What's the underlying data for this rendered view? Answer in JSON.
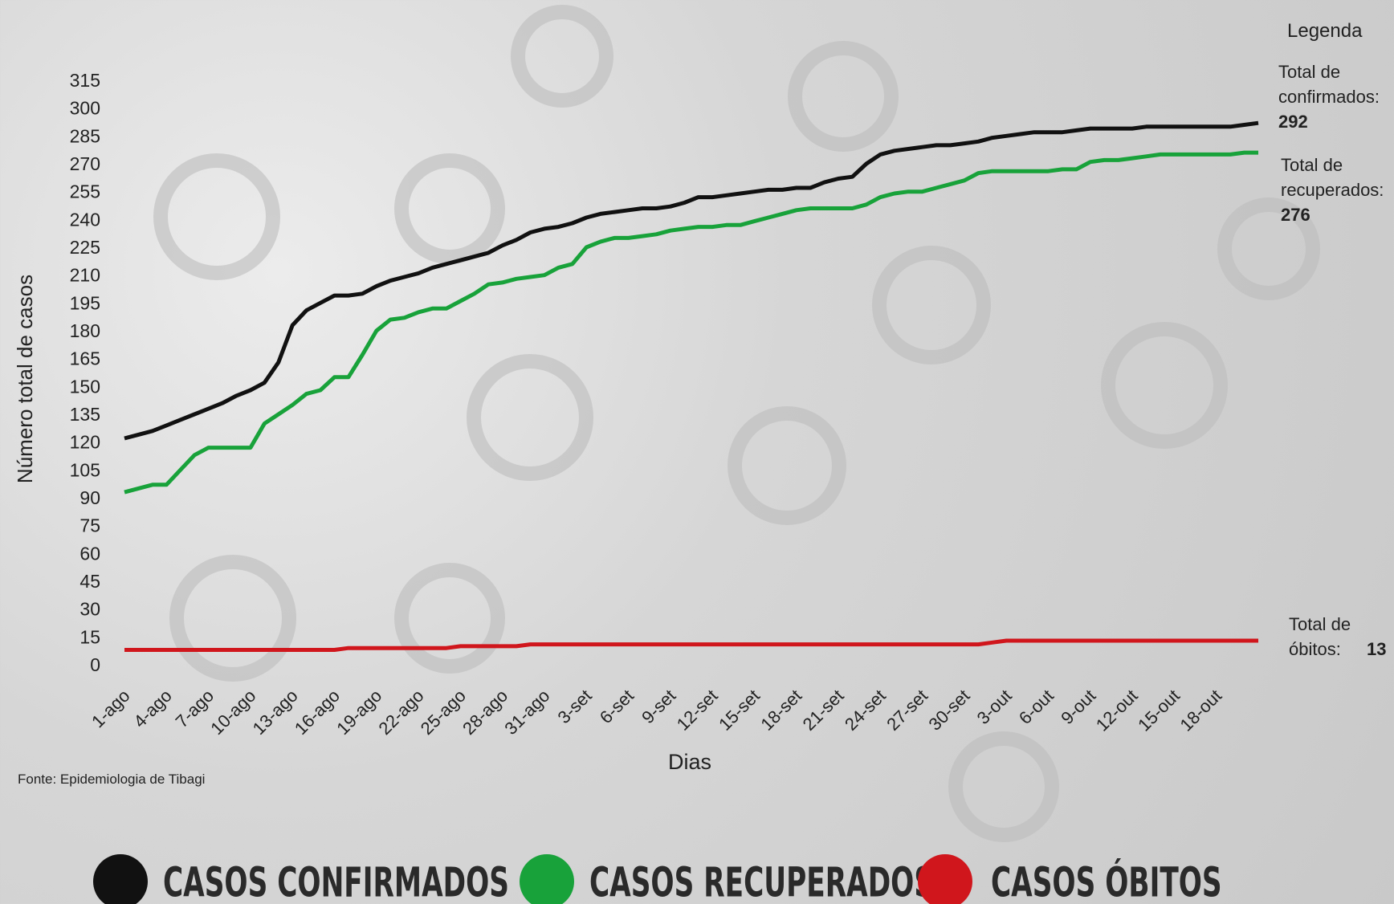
{
  "chart_data": {
    "type": "line",
    "y_label": "Número total de casos",
    "x_label": "Dias",
    "source": "Fonte: Epidemiologia de Tibagi",
    "legend_title": "Legenda",
    "categories": [
      "1-ago",
      null,
      null,
      "4-ago",
      null,
      null,
      "7-ago",
      null,
      null,
      "10-ago",
      null,
      null,
      "13-ago",
      null,
      null,
      "16-ago",
      null,
      null,
      "19-ago",
      null,
      null,
      "22-ago",
      null,
      null,
      "25-ago",
      null,
      null,
      "28-ago",
      null,
      null,
      "31-ago",
      null,
      null,
      "3-set",
      null,
      null,
      "6-set",
      null,
      null,
      "9-set",
      null,
      null,
      "12-set",
      null,
      null,
      "15-set",
      null,
      null,
      "18-set",
      null,
      null,
      "21-set",
      null,
      null,
      "24-set",
      null,
      null,
      "27-set",
      null,
      null,
      "30-set",
      null,
      null,
      "3-out",
      null,
      null,
      "6-out",
      null,
      null,
      "9-out",
      null,
      null,
      "12-out",
      null,
      null,
      "15-out",
      null,
      null,
      "18-out",
      null,
      null,
      null
    ],
    "series": [
      {
        "name": "CASOS CONFIRMADOS",
        "color": "#111111",
        "values": [
          122,
          124,
          126,
          129,
          132,
          135,
          138,
          141,
          145,
          148,
          152,
          163,
          183,
          191,
          195,
          199,
          199,
          200,
          204,
          207,
          209,
          211,
          214,
          216,
          218,
          220,
          222,
          226,
          229,
          233,
          235,
          236,
          238,
          241,
          243,
          244,
          245,
          246,
          246,
          247,
          249,
          252,
          252,
          253,
          254,
          255,
          256,
          256,
          257,
          257,
          260,
          262,
          263,
          270,
          275,
          277,
          278,
          279,
          280,
          280,
          281,
          282,
          284,
          285,
          286,
          287,
          287,
          287,
          288,
          289,
          289,
          289,
          289,
          290,
          290,
          290,
          290,
          290,
          290,
          290,
          291,
          292
        ]
      },
      {
        "name": "CASOS RECUPERADOS",
        "color": "#18a23a",
        "values": [
          93,
          95,
          97,
          97,
          105,
          113,
          117,
          117,
          117,
          117,
          130,
          135,
          140,
          146,
          148,
          155,
          155,
          167,
          180,
          186,
          187,
          190,
          192,
          192,
          196,
          200,
          205,
          206,
          208,
          209,
          210,
          214,
          216,
          225,
          228,
          230,
          230,
          231,
          232,
          234,
          235,
          236,
          236,
          237,
          237,
          239,
          241,
          243,
          245,
          246,
          246,
          246,
          246,
          248,
          252,
          254,
          255,
          255,
          257,
          259,
          261,
          265,
          266,
          266,
          266,
          266,
          266,
          267,
          267,
          271,
          272,
          272,
          273,
          274,
          275,
          275,
          275,
          275,
          275,
          275,
          276,
          276
        ]
      },
      {
        "name": "CASOS ÓBITOS",
        "color": "#d0161c",
        "values": [
          8,
          8,
          8,
          8,
          8,
          8,
          8,
          8,
          8,
          8,
          8,
          8,
          8,
          8,
          8,
          8,
          9,
          9,
          9,
          9,
          9,
          9,
          9,
          9,
          10,
          10,
          10,
          10,
          10,
          11,
          11,
          11,
          11,
          11,
          11,
          11,
          11,
          11,
          11,
          11,
          11,
          11,
          11,
          11,
          11,
          11,
          11,
          11,
          11,
          11,
          11,
          11,
          11,
          11,
          11,
          11,
          11,
          11,
          11,
          11,
          11,
          11,
          12,
          13,
          13,
          13,
          13,
          13,
          13,
          13,
          13,
          13,
          13,
          13,
          13,
          13,
          13,
          13,
          13,
          13,
          13,
          13
        ]
      }
    ],
    "annotations": [
      {
        "text": [
          "Total de",
          "confirmados:"
        ]
      },
      {
        "text": [
          "Total de",
          "recuperados:"
        ]
      },
      {
        "text": [
          "Total de",
          "óbitos:"
        ]
      }
    ],
    "ylim": [
      0,
      315
    ],
    "yticks": [
      0,
      15,
      30,
      45,
      60,
      75,
      90,
      105,
      120,
      135,
      150,
      165,
      180,
      195,
      210,
      225,
      240,
      255,
      270,
      285,
      300,
      315
    ],
    "grid": false
  }
}
